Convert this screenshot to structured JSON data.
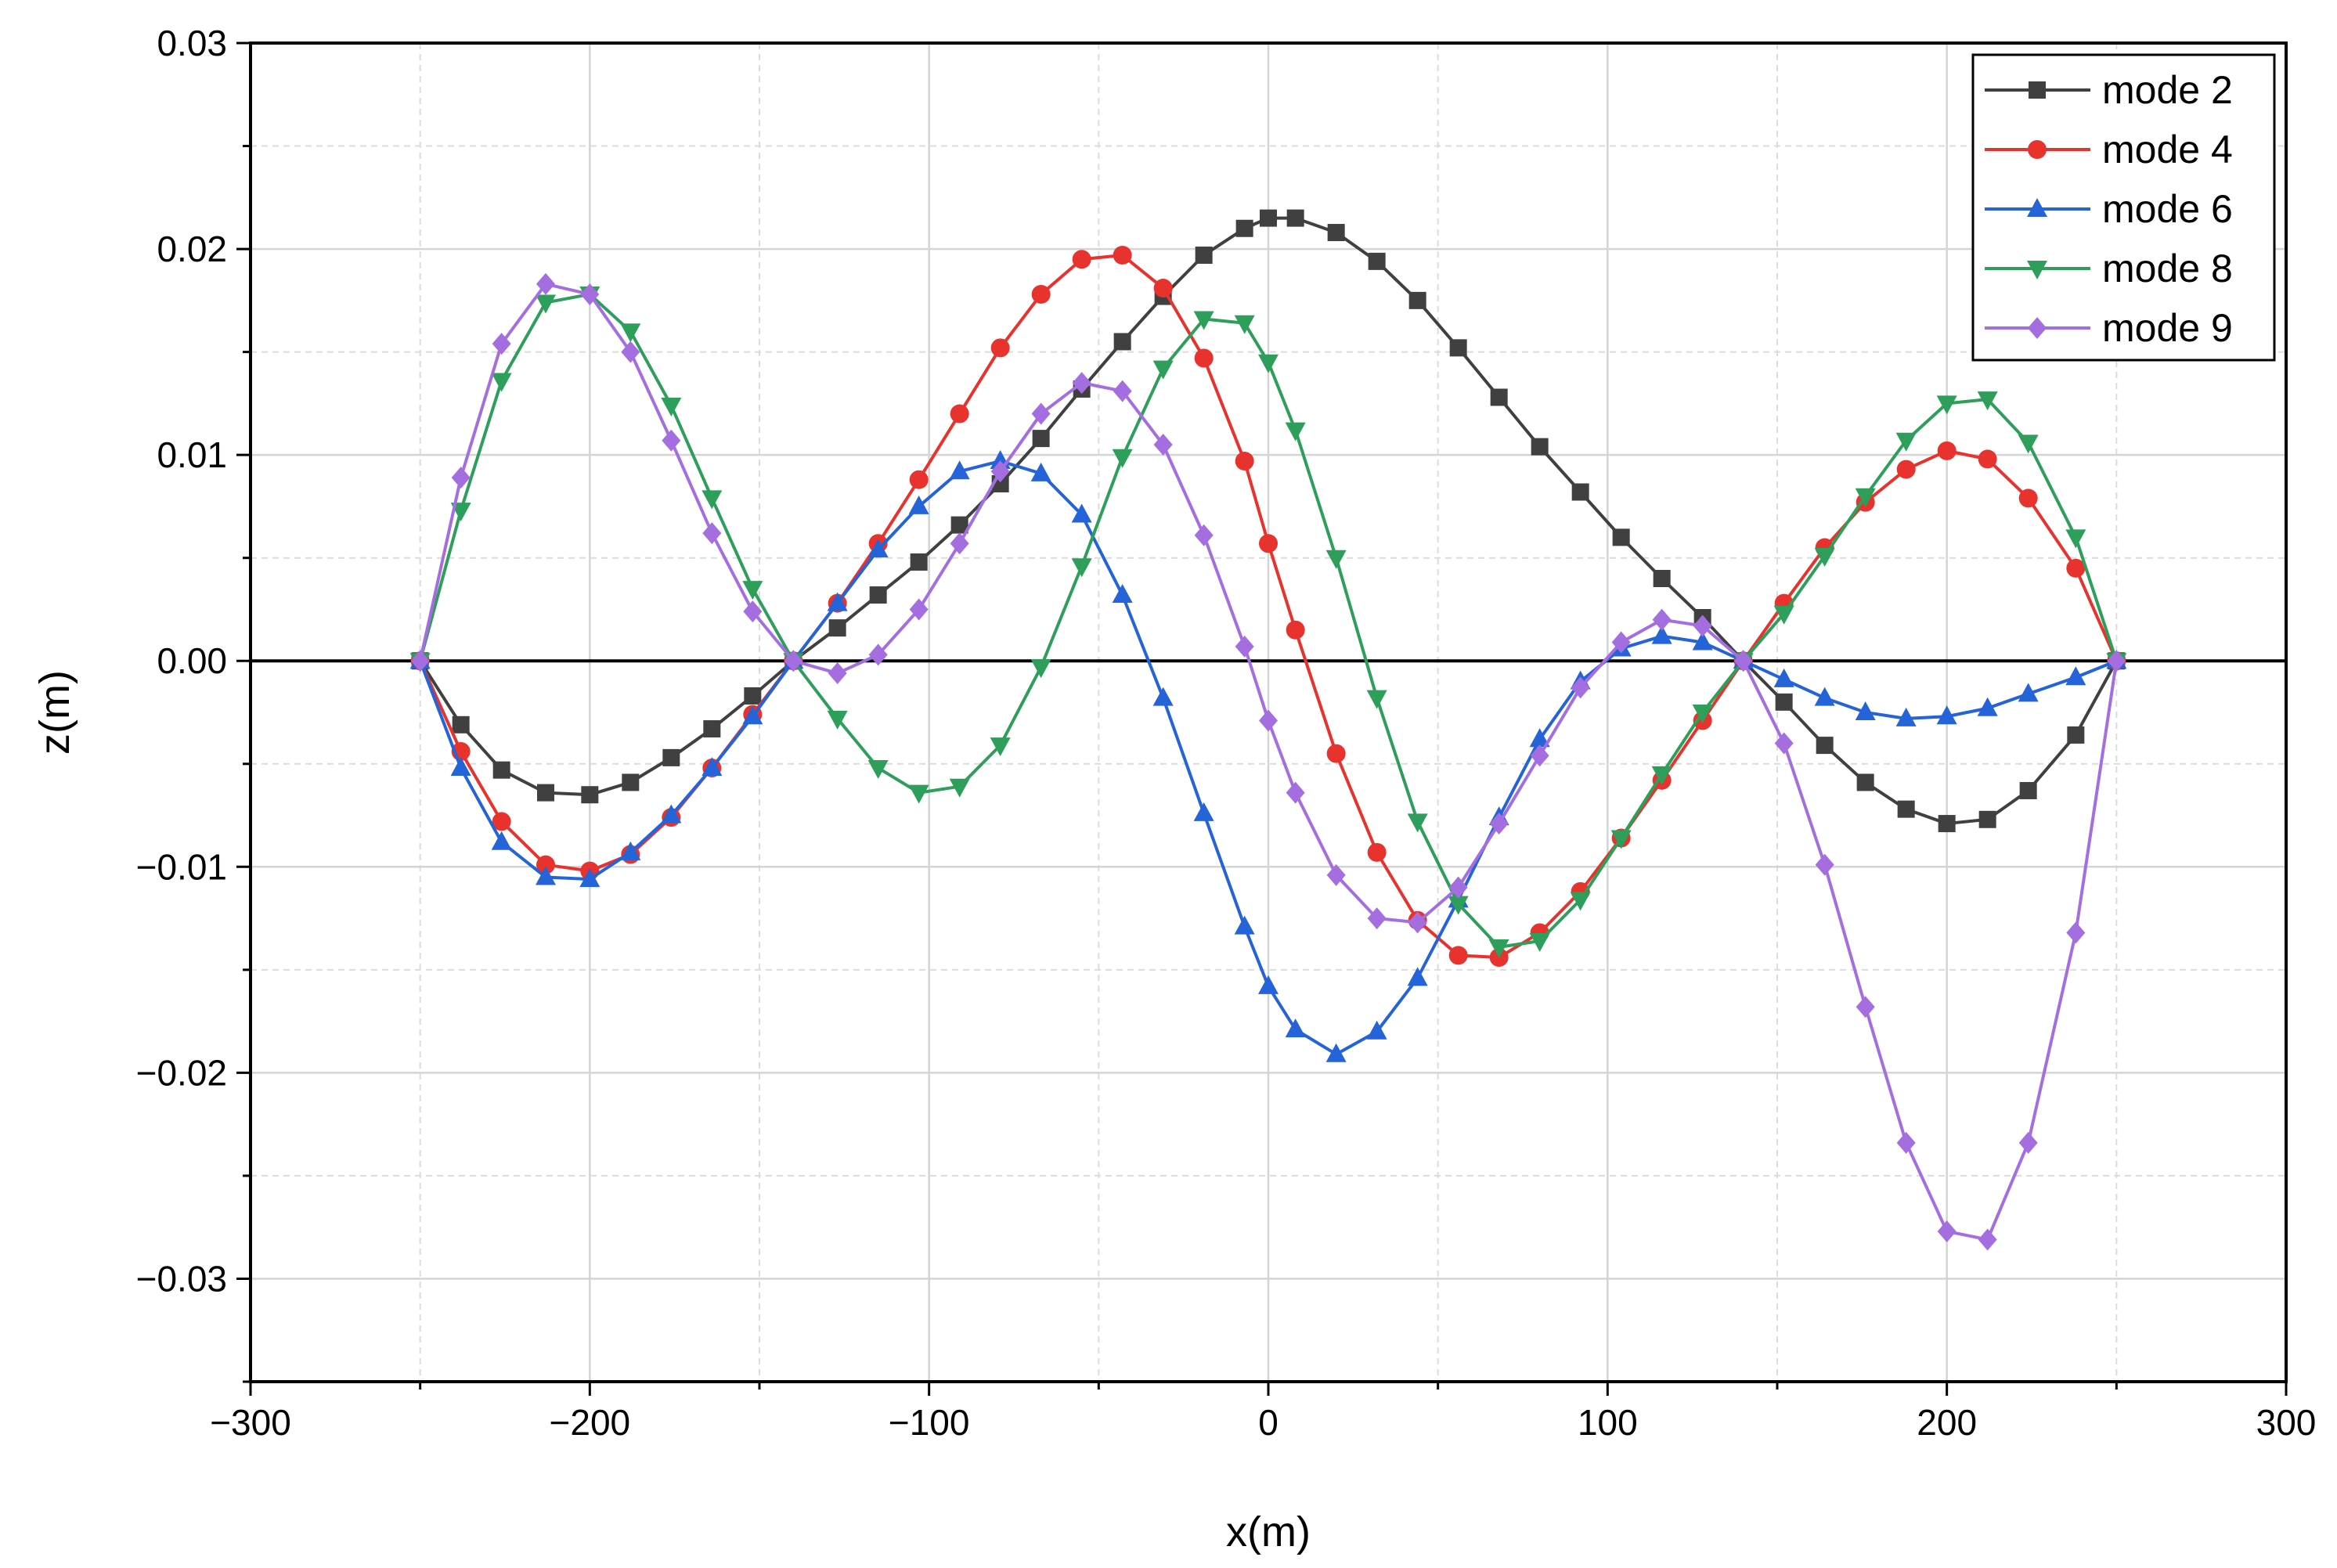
{
  "chart_data": {
    "type": "line",
    "title": "",
    "xlabel": "x(m)",
    "ylabel": "z(m)",
    "xlim": [
      -300,
      300
    ],
    "ylim": [
      -0.035,
      0.03
    ],
    "grid": true,
    "legend_position": "top-right",
    "x_ticks": [
      -300,
      -200,
      -100,
      0,
      100,
      200,
      300
    ],
    "x_tick_labels": [
      "−300",
      "−200",
      "−100",
      "0",
      "100",
      "200",
      "300"
    ],
    "y_ticks": [
      -0.03,
      -0.02,
      -0.01,
      0.0,
      0.01,
      0.02,
      0.03
    ],
    "y_tick_labels": [
      "−0.03",
      "−0.02",
      "−0.01",
      "0.00",
      "0.01",
      "0.02",
      "0.03"
    ],
    "x": [
      -250,
      -238,
      -226,
      -213,
      -200,
      -188,
      -176,
      -164,
      -152,
      -140,
      -127,
      -115,
      -103,
      -91,
      -79,
      -67,
      -55,
      -43,
      -31,
      -19,
      -7,
      0,
      8,
      20,
      32,
      44,
      56,
      68,
      80,
      92,
      104,
      116,
      128,
      140,
      152,
      164,
      176,
      188,
      200,
      212,
      224,
      238,
      250
    ],
    "series": [
      {
        "name": "mode 2",
        "color": "#404040",
        "marker": "square",
        "values": [
          0.0,
          -0.0031,
          -0.0053,
          -0.0064,
          -0.0065,
          -0.0059,
          -0.0047,
          -0.0033,
          -0.0017,
          0.0,
          0.0016,
          0.0032,
          0.0048,
          0.0066,
          0.0086,
          0.0108,
          0.0132,
          0.0155,
          0.0177,
          0.0197,
          0.021,
          0.0215,
          0.0215,
          0.0208,
          0.0194,
          0.0175,
          0.0152,
          0.0128,
          0.0104,
          0.0082,
          0.006,
          0.004,
          0.0021,
          0.0,
          -0.002,
          -0.0041,
          -0.0059,
          -0.0072,
          -0.0079,
          -0.0077,
          -0.0063,
          -0.0036,
          0.0
        ]
      },
      {
        "name": "mode 4",
        "color": "#e8322d",
        "marker": "circle",
        "values": [
          0.0,
          -0.0044,
          -0.0078,
          -0.0099,
          -0.0102,
          -0.0094,
          -0.0076,
          -0.0052,
          -0.0026,
          0.0,
          0.0028,
          0.0057,
          0.0088,
          0.012,
          0.0152,
          0.0178,
          0.0195,
          0.0197,
          0.0181,
          0.0147,
          0.0097,
          0.0057,
          0.0015,
          -0.0045,
          -0.0093,
          -0.0126,
          -0.0143,
          -0.0144,
          -0.0132,
          -0.0112,
          -0.0086,
          -0.0058,
          -0.0029,
          0.0,
          0.0028,
          0.0055,
          0.0077,
          0.0093,
          0.0102,
          0.0098,
          0.0079,
          0.0045,
          0.0
        ]
      },
      {
        "name": "mode 6",
        "color": "#2563d9",
        "marker": "triangle-up",
        "values": [
          0.0,
          -0.0052,
          -0.0088,
          -0.0105,
          -0.0106,
          -0.0093,
          -0.0075,
          -0.0052,
          -0.0027,
          0.0,
          0.0028,
          0.0054,
          0.0075,
          0.0092,
          0.0097,
          0.0091,
          0.0071,
          0.0032,
          -0.0018,
          -0.0074,
          -0.0129,
          -0.0158,
          -0.0179,
          -0.0191,
          -0.018,
          -0.0154,
          -0.0116,
          -0.0076,
          -0.0038,
          -0.001,
          0.0006,
          0.0012,
          0.0009,
          0.0,
          -0.0009,
          -0.0018,
          -0.0025,
          -0.0028,
          -0.0027,
          -0.0023,
          -0.0016,
          -0.0008,
          0.0
        ]
      },
      {
        "name": "mode 8",
        "color": "#2e9e5b",
        "marker": "triangle-down",
        "values": [
          0.0,
          0.0073,
          0.0136,
          0.0174,
          0.0178,
          0.016,
          0.0124,
          0.0079,
          0.0035,
          0.0,
          -0.0028,
          -0.0052,
          -0.0064,
          -0.0061,
          -0.0041,
          -0.0003,
          0.0046,
          0.0099,
          0.0142,
          0.0166,
          0.0164,
          0.0145,
          0.0112,
          0.005,
          -0.0018,
          -0.0078,
          -0.0118,
          -0.0139,
          -0.0136,
          -0.0116,
          -0.0086,
          -0.0055,
          -0.0025,
          0.0,
          0.0023,
          0.0051,
          0.008,
          0.0107,
          0.0125,
          0.0127,
          0.0106,
          0.006,
          0.0
        ]
      },
      {
        "name": "mode 9",
        "color": "#a56ee0",
        "marker": "diamond",
        "values": [
          0.0,
          0.0089,
          0.0154,
          0.0183,
          0.0178,
          0.015,
          0.0107,
          0.0062,
          0.0024,
          0.0,
          -0.0006,
          0.0003,
          0.0025,
          0.0057,
          0.0092,
          0.012,
          0.0135,
          0.0131,
          0.0105,
          0.0061,
          0.0007,
          -0.0029,
          -0.0064,
          -0.0104,
          -0.0125,
          -0.0127,
          -0.011,
          -0.0079,
          -0.0046,
          -0.0013,
          0.0009,
          0.002,
          0.0017,
          0.0,
          -0.004,
          -0.0099,
          -0.0168,
          -0.0234,
          -0.0277,
          -0.0281,
          -0.0234,
          -0.0132,
          0.0
        ]
      }
    ]
  }
}
